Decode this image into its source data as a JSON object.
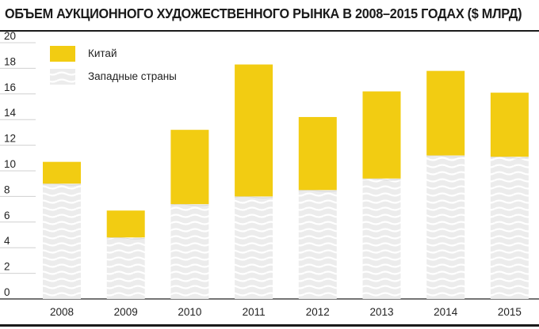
{
  "chart_data": {
    "type": "bar",
    "stacked": true,
    "title": "ОБЪЕМ АУКЦИОННОГО ХУДОЖЕСТВЕННОГО РЫНКА В 2008–2015 ГОДАХ ($ МЛРД)",
    "categories": [
      "2008",
      "2009",
      "2010",
      "2011",
      "2012",
      "2013",
      "2014",
      "2015"
    ],
    "series": [
      {
        "name": "Западные страны",
        "values": [
          9.0,
          4.8,
          7.4,
          8.0,
          8.5,
          9.4,
          11.2,
          11.1
        ],
        "color": "#e6e6e6",
        "pattern": "wavy"
      },
      {
        "name": "Китай",
        "values": [
          1.7,
          2.1,
          5.8,
          10.3,
          5.7,
          6.8,
          6.6,
          5.0
        ],
        "color": "#f2cc12"
      }
    ],
    "ylim": [
      0,
      20
    ],
    "yticks": [
      "0",
      "2",
      "4",
      "6",
      "8",
      "10",
      "12",
      "14",
      "16",
      "18",
      "20"
    ],
    "grid": true,
    "legend_position": "top-left"
  }
}
